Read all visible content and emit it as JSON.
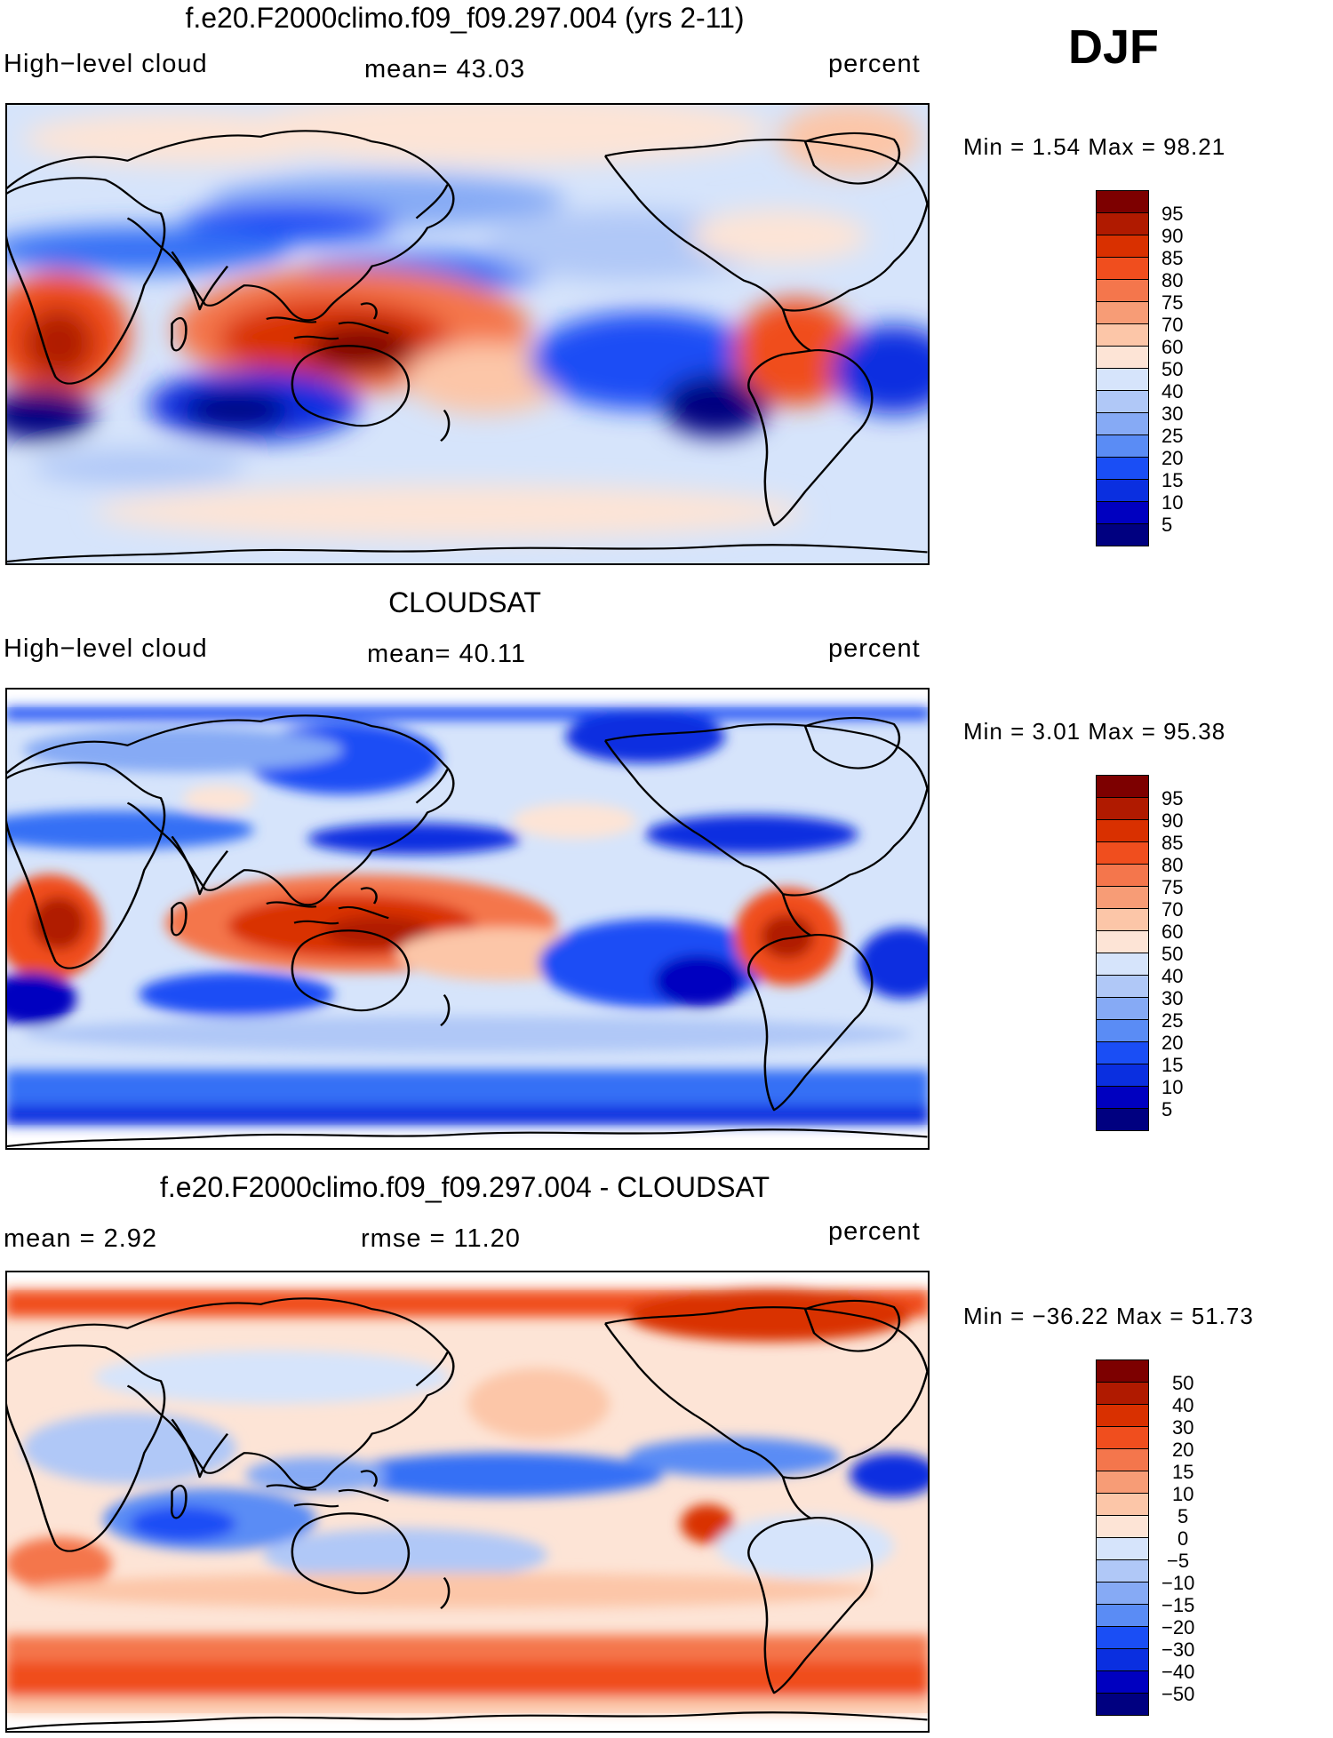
{
  "season": "DJF",
  "panels": [
    {
      "title": "f.e20.F2000climo.f09_f09.297.004 (yrs 2-11)",
      "left_label": "High−level cloud",
      "mid_label": "mean=   43.03",
      "right_label": "percent",
      "minmax": "Min =      1.54  Max  =     98.21"
    },
    {
      "title": "CLOUDSAT",
      "left_label": "High−level cloud",
      "mid_label": "mean=   40.11",
      "right_label": "percent",
      "minmax": "Min =      3.01  Max  =     95.38"
    },
    {
      "title": "f.e20.F2000climo.f09_f09.297.004 - CLOUDSAT",
      "left_label": "mean  =      2.92",
      "mid_label": "rmse  =     11.20",
      "right_label": "percent",
      "minmax": "Min  =  −36.22  Max  =     51.73"
    }
  ],
  "colors": {
    "scale": [
      "#000080",
      "#0000c0",
      "#0a2fe0",
      "#1a4ef5",
      "#3570f5",
      "#5a8cf5",
      "#86aaf5",
      "#b0c8f7",
      "#d6e4fb",
      "#fde4d6",
      "#fcc6a8",
      "#f79c76",
      "#f4764c",
      "#f04e1e",
      "#d93000",
      "#b01a00",
      "#7d0000"
    ],
    "land_line": "#000000"
  },
  "legends": [
    {
      "labels": [
        "95",
        "90",
        "85",
        "80",
        "75",
        "70",
        "60",
        "50",
        "40",
        "30",
        "25",
        "20",
        "15",
        "10",
        "5"
      ]
    },
    {
      "labels": [
        "95",
        "90",
        "85",
        "80",
        "75",
        "70",
        "60",
        "50",
        "40",
        "30",
        "25",
        "20",
        "15",
        "10",
        "5"
      ]
    },
    {
      "labels": [
        "50",
        "40",
        "30",
        "20",
        "15",
        "10",
        "5",
        "0",
        "−5",
        "−10",
        "−15",
        "−20",
        "−30",
        "−40",
        "−50"
      ]
    }
  ]
}
